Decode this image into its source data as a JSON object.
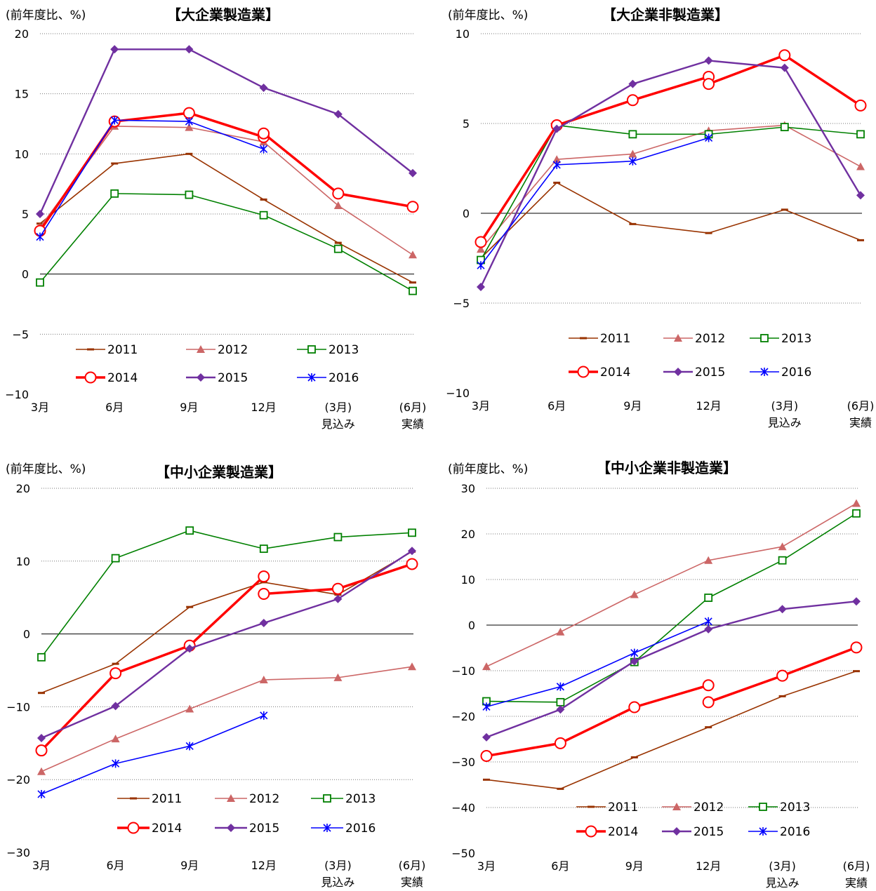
{
  "chart_data": [
    {
      "type": "line",
      "title": "【大企業製造業】",
      "ylabel": "(前年度比、%)",
      "ylim": [
        -10,
        20
      ],
      "yticks": [
        -10,
        -5,
        0,
        5,
        10,
        15,
        20
      ],
      "grid": true,
      "legend_position": "bottom",
      "categories": [
        {
          "top": "3月",
          "bottom": ""
        },
        {
          "top": "6月",
          "bottom": ""
        },
        {
          "top": "9月",
          "bottom": ""
        },
        {
          "top": "12月",
          "bottom": ""
        },
        {
          "top": "(3月)",
          "bottom": "見込み"
        },
        {
          "top": "(6月)",
          "bottom": "実績"
        }
      ],
      "series": [
        {
          "name": "2011",
          "values": [
            4.2,
            9.2,
            10.0,
            6.2,
            2.6,
            -0.7
          ]
        },
        {
          "name": "2012",
          "values": [
            3.9,
            12.3,
            12.2,
            11.0,
            5.7,
            1.6
          ]
        },
        {
          "name": "2013",
          "values": [
            -0.7,
            6.7,
            6.6,
            4.9,
            2.1,
            -1.4
          ]
        },
        {
          "name": "2014",
          "segments": [
            [
              3.6,
              12.7,
              13.4,
              11.4,
              null,
              null
            ],
            [
              null,
              null,
              null,
              11.7,
              6.7,
              5.6
            ]
          ]
        },
        {
          "name": "2015",
          "values": [
            5.0,
            18.7,
            18.7,
            15.5,
            13.3,
            8.4
          ]
        },
        {
          "name": "2016",
          "values": [
            3.1,
            12.8,
            12.7,
            10.4,
            null,
            null
          ]
        }
      ]
    },
    {
      "type": "line",
      "title": "【大企業非製造業】",
      "ylabel": "(前年度比、%)",
      "ylim": [
        -10,
        10
      ],
      "yticks": [
        -10,
        -5,
        0,
        5,
        10
      ],
      "grid": true,
      "legend_position": "bottom",
      "categories": [
        {
          "top": "3月",
          "bottom": ""
        },
        {
          "top": "6月",
          "bottom": ""
        },
        {
          "top": "9月",
          "bottom": ""
        },
        {
          "top": "12月",
          "bottom": ""
        },
        {
          "top": "(3月)",
          "bottom": "見込み"
        },
        {
          "top": "(6月)",
          "bottom": "実績"
        }
      ],
      "series": [
        {
          "name": "2011",
          "values": [
            -2.5,
            1.7,
            -0.6,
            -1.1,
            0.2,
            -1.5
          ]
        },
        {
          "name": "2012",
          "values": [
            -2.0,
            3.0,
            3.3,
            4.6,
            4.9,
            2.6
          ]
        },
        {
          "name": "2013",
          "values": [
            -2.6,
            4.9,
            4.4,
            4.4,
            4.8,
            4.4
          ]
        },
        {
          "name": "2014",
          "segments": [
            [
              -1.6,
              4.9,
              6.3,
              7.6,
              null,
              null
            ],
            [
              null,
              null,
              null,
              7.2,
              8.8,
              6.0
            ]
          ]
        },
        {
          "name": "2015",
          "values": [
            -4.1,
            4.7,
            7.2,
            8.5,
            8.1,
            1.0
          ]
        },
        {
          "name": "2016",
          "values": [
            -2.9,
            2.7,
            2.9,
            4.2,
            null,
            null
          ]
        }
      ]
    },
    {
      "type": "line",
      "title": "【中小企業製造業】",
      "ylabel": "(前年度比、%)",
      "ylim": [
        -30,
        20
      ],
      "yticks": [
        -30,
        -20,
        -10,
        0,
        10,
        20
      ],
      "grid": true,
      "legend_position": "bottom",
      "categories": [
        {
          "top": "3月",
          "bottom": ""
        },
        {
          "top": "6月",
          "bottom": ""
        },
        {
          "top": "9月",
          "bottom": ""
        },
        {
          "top": "12月",
          "bottom": ""
        },
        {
          "top": "(3月)",
          "bottom": "見込み"
        },
        {
          "top": "(6月)",
          "bottom": "実績"
        }
      ],
      "series": [
        {
          "name": "2011",
          "values": [
            -8.1,
            -4.1,
            3.7,
            7.1,
            5.4,
            11.3
          ]
        },
        {
          "name": "2012",
          "values": [
            -18.9,
            -14.4,
            -10.3,
            -6.3,
            -6.0,
            -4.5
          ]
        },
        {
          "name": "2013",
          "values": [
            -3.2,
            10.4,
            14.2,
            11.7,
            13.3,
            13.9
          ]
        },
        {
          "name": "2014",
          "segments": [
            [
              -16.0,
              -5.4,
              -1.6,
              7.9,
              null,
              null
            ],
            [
              null,
              null,
              null,
              5.5,
              6.2,
              9.6
            ]
          ]
        },
        {
          "name": "2015",
          "values": [
            -14.3,
            -9.9,
            -2.0,
            1.5,
            4.8,
            11.4
          ]
        },
        {
          "name": "2016",
          "values": [
            -22.0,
            -17.8,
            -15.4,
            -11.2,
            null,
            null
          ]
        }
      ]
    },
    {
      "type": "line",
      "title": "【中小企業非製造業】",
      "ylabel": "(前年度比、%)",
      "ylim": [
        -50,
        30
      ],
      "yticks": [
        -50,
        -40,
        -30,
        -20,
        -10,
        0,
        10,
        20,
        30
      ],
      "grid": true,
      "legend_position": "bottom",
      "categories": [
        {
          "top": "3月",
          "bottom": ""
        },
        {
          "top": "6月",
          "bottom": ""
        },
        {
          "top": "9月",
          "bottom": ""
        },
        {
          "top": "12月",
          "bottom": ""
        },
        {
          "top": "(3月)",
          "bottom": "見込み"
        },
        {
          "top": "(6月)",
          "bottom": "実績"
        }
      ],
      "series": [
        {
          "name": "2011",
          "values": [
            -33.9,
            -35.9,
            -29.0,
            -22.4,
            -15.6,
            -10.1
          ]
        },
        {
          "name": "2012",
          "values": [
            -9.1,
            -1.5,
            6.7,
            14.2,
            17.2,
            26.7
          ]
        },
        {
          "name": "2013",
          "values": [
            -16.7,
            -16.9,
            -8.1,
            6.0,
            14.2,
            24.5
          ]
        },
        {
          "name": "2014",
          "segments": [
            [
              -28.7,
              -25.9,
              -18.0,
              -13.2,
              null,
              null
            ],
            [
              null,
              null,
              null,
              -16.9,
              -11.1,
              -4.9
            ]
          ]
        },
        {
          "name": "2015",
          "values": [
            -24.6,
            -18.5,
            -7.9,
            -0.9,
            3.5,
            5.2
          ]
        },
        {
          "name": "2016",
          "values": [
            -17.9,
            -13.5,
            -6.1,
            0.8,
            null,
            null
          ]
        }
      ]
    }
  ],
  "styles": {
    "2011": {
      "color": "#993300",
      "marker": "dash"
    },
    "2012": {
      "color": "#cc6666",
      "marker": "triangle"
    },
    "2013": {
      "color": "#008000",
      "marker": "square"
    },
    "2014": {
      "color": "#ff0000",
      "marker": "circle"
    },
    "2015": {
      "color": "#7030a0",
      "marker": "diamond"
    },
    "2016": {
      "color": "#0000ff",
      "marker": "asterisk"
    }
  }
}
